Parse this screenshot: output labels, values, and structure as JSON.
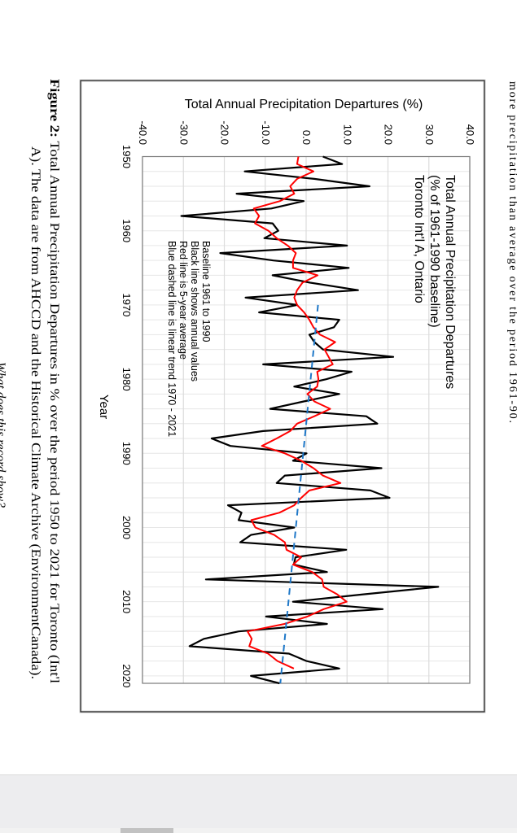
{
  "document": {
    "top_text_partial": "more precipitation than average over the period 1961-90.",
    "caption": {
      "label": "Figure 2:",
      "line1": " Total Annual Precipitation Departures in % over the period 1950 to 2021 for Toronto (Int'l",
      "line2": "A). The data are from AHCCD and the Historical Climate Archive (EnvironmentCanada).",
      "question_partial": "What does this record show?"
    }
  },
  "chart_data": {
    "type": "line",
    "title_lines": [
      "Total Annual Precipitation Departures",
      "(% of 1961-1990 baseline)",
      "Toronto Int'l A, Ontario"
    ],
    "notes": [
      "Baseline 1961 to 1990",
      "Black line shows annual values",
      "Red line is 5-year average",
      "Blue dashed line is linear trend 1970 - 2021"
    ],
    "xlabel": "Year",
    "ylabel": "Total Annual Precipitation Departures (%)",
    "xlim": [
      1950,
      2021
    ],
    "ylim": [
      -40,
      40
    ],
    "x_ticks": [
      "1950",
      "1960",
      "1970",
      "1980",
      "1990",
      "2000",
      "2010",
      "2020"
    ],
    "y_ticks": [
      "-40.0",
      "-30.0",
      "-20.0",
      "-10.0",
      "0.0",
      "10.0",
      "20.0",
      "30.0",
      "40.0"
    ],
    "grid": true,
    "orientation": "page rotated 90 degrees clockwise",
    "series": [
      {
        "role": "annual values",
        "color": "#000000",
        "start_year": 1950,
        "values": [
          4.1,
          8.8,
          -15,
          2,
          15.5,
          -17,
          -0.6,
          -8.5,
          -30.5,
          -8.2,
          -6.8,
          -10.2,
          10,
          -21,
          -8,
          10.4,
          -8.2,
          1,
          12.7,
          -14.8,
          -2.2,
          -11.5,
          8.1,
          6.8,
          0.8,
          2,
          4.1,
          21.3,
          -10.5,
          11.1,
          5,
          -2.9,
          8.1,
          -0.6,
          -8.8,
          14.7,
          17.4,
          -10.5,
          -23.1,
          -18.5,
          0.1,
          -3.2,
          18.4,
          -5.2,
          -7.2,
          15.7,
          20.4,
          -19.1,
          -15.8,
          -16.5,
          -2.9,
          -13.5,
          -16.1,
          9.8,
          -2.6,
          -3,
          5.1,
          -24.5,
          32.3,
          14,
          -3.2,
          18.7,
          -9.8,
          5.1,
          -16.5,
          -25,
          -28.5,
          -4.2,
          0.1,
          8.1,
          -13.5,
          -6.5
        ]
      },
      {
        "role": "5-year average",
        "color": "#ff0000",
        "start_year": 1950,
        "values": [
          -1.9,
          -2.2,
          1.8,
          -2.2,
          -3.9,
          -2.9,
          -6.4,
          -12.8,
          -11.5,
          -12.5,
          -9.2,
          -7.2,
          -4.5,
          -2.5,
          -3.2,
          -3.2,
          2.8,
          -0.9,
          -2.2,
          -2.9,
          -2.2,
          -0.5,
          0.8,
          1.8,
          3.4,
          7.1,
          4.5,
          5.5,
          6.5,
          2.7,
          3,
          2.7,
          0.3,
          2,
          5.9,
          2,
          -2.2,
          -3.9,
          -7.2,
          -10.8,
          -5.2,
          -1.2,
          1.8,
          4.1,
          8.4,
          0.8,
          -1.2,
          -2.9,
          -6.5,
          -13.4,
          -12.4,
          -7.8,
          -5.2,
          -4.8,
          -1.2,
          -3.2,
          1.5,
          3.9,
          4.3,
          7.6,
          9.9,
          4.3,
          0.3,
          -5.3,
          -14.3,
          -13.3,
          -13.9,
          -9.3,
          -7,
          -3
        ]
      },
      {
        "role": "linear trend 1970-2021",
        "color": "#1f78c8",
        "dashed": true,
        "x": [
          1970,
          2021
        ],
        "values": [
          2.9,
          -6.3
        ]
      }
    ]
  }
}
